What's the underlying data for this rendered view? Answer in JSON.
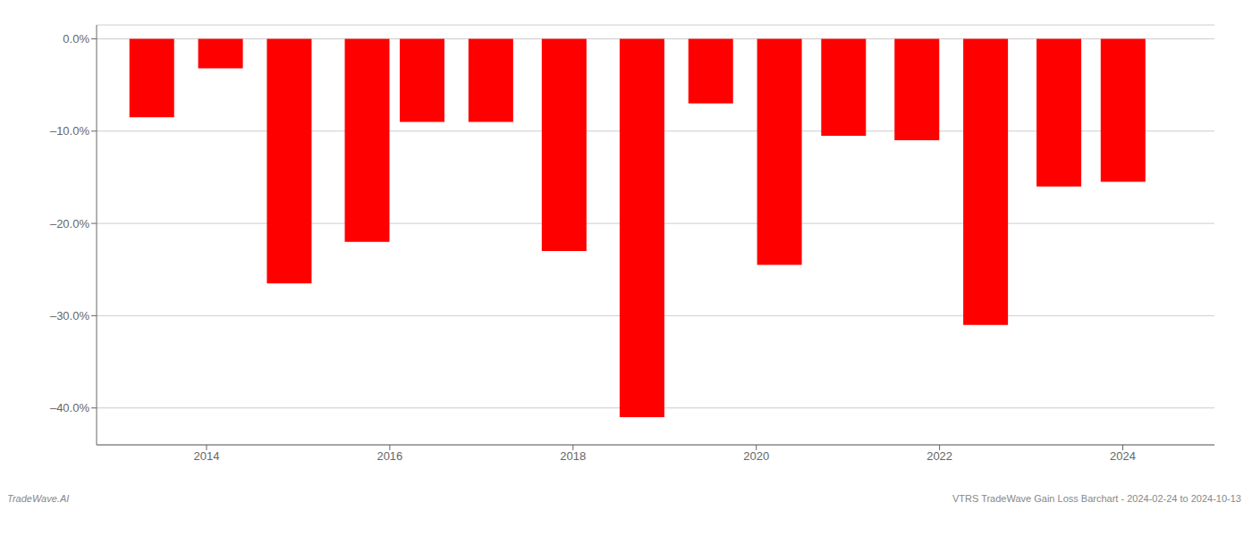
{
  "chart_data": {
    "type": "bar",
    "x": [
      2013.4,
      2014.15,
      2014.9,
      2015.75,
      2016.35,
      2017.1,
      2017.9,
      2018.75,
      2019.5,
      2020.25,
      2020.95,
      2021.75,
      2022.5,
      2023.3,
      2024.0
    ],
    "values": [
      -8.5,
      -3.2,
      -26.5,
      -22.0,
      -9.0,
      -9.0,
      -23.0,
      -41.0,
      -7.0,
      -24.5,
      -10.5,
      -11.0,
      -31.0,
      -16.0,
      -15.5
    ],
    "color": "#ff0000",
    "xlim": [
      2012.8,
      2025.0
    ],
    "xticks": [
      2014,
      2016,
      2018,
      2020,
      2022,
      2024
    ],
    "ylim": [
      -44,
      1.5
    ],
    "yticks": [
      {
        "value": 0.0,
        "label": "0.0%"
      },
      {
        "value": -10.0,
        "label": "–10.0%"
      },
      {
        "value": -20.0,
        "label": "–20.0%"
      },
      {
        "value": -30.0,
        "label": "–30.0%"
      },
      {
        "value": -40.0,
        "label": "–40.0%"
      }
    ],
    "grid": true,
    "annotations": [
      "TradeWave.AI",
      "VTRS TradeWave Gain Loss Barchart - 2024-02-24 to 2024-10-13"
    ]
  }
}
